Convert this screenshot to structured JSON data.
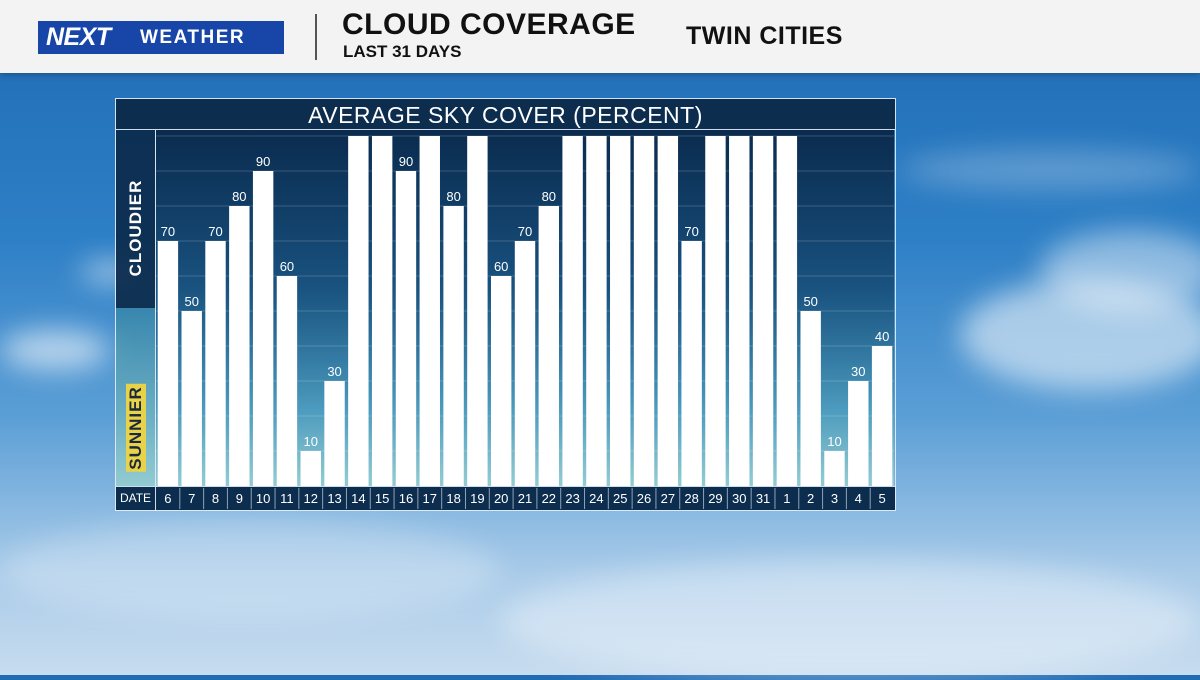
{
  "header": {
    "logo_next": "NEXT",
    "logo_weather": "WEATHER",
    "title": "CLOUD COVERAGE",
    "subtitle": "LAST 31 DAYS",
    "location": "TWIN CITIES"
  },
  "chart_data": {
    "type": "bar",
    "title": "AVERAGE SKY COVER (PERCENT)",
    "xlabel": "DATE",
    "ylabel_top": "CLOUDIER",
    "ylabel_bottom": "SUNNIER",
    "ylim": [
      0,
      100
    ],
    "categories": [
      "6",
      "7",
      "8",
      "9",
      "10",
      "11",
      "12",
      "13",
      "14",
      "15",
      "16",
      "17",
      "18",
      "19",
      "20",
      "21",
      "22",
      "23",
      "24",
      "25",
      "26",
      "27",
      "28",
      "29",
      "30",
      "31",
      "1",
      "2",
      "3",
      "4",
      "5"
    ],
    "values": [
      70,
      50,
      70,
      80,
      90,
      60,
      10,
      30,
      100,
      100,
      90,
      100,
      80,
      100,
      60,
      70,
      80,
      100,
      100,
      100,
      100,
      100,
      70,
      100,
      100,
      100,
      100,
      50,
      10,
      30,
      40
    ],
    "data_labels": [
      "70",
      "50",
      "70",
      "80",
      "90",
      "60",
      "10",
      "30",
      "",
      "",
      "90",
      "",
      "80",
      "",
      "60",
      "70",
      "80",
      "",
      "",
      "",
      "",
      "",
      "70",
      "",
      "",
      "",
      "",
      "50",
      "10",
      "30",
      "40"
    ],
    "colors": {
      "bar": "#ffffff",
      "label": "#ffffff"
    }
  }
}
